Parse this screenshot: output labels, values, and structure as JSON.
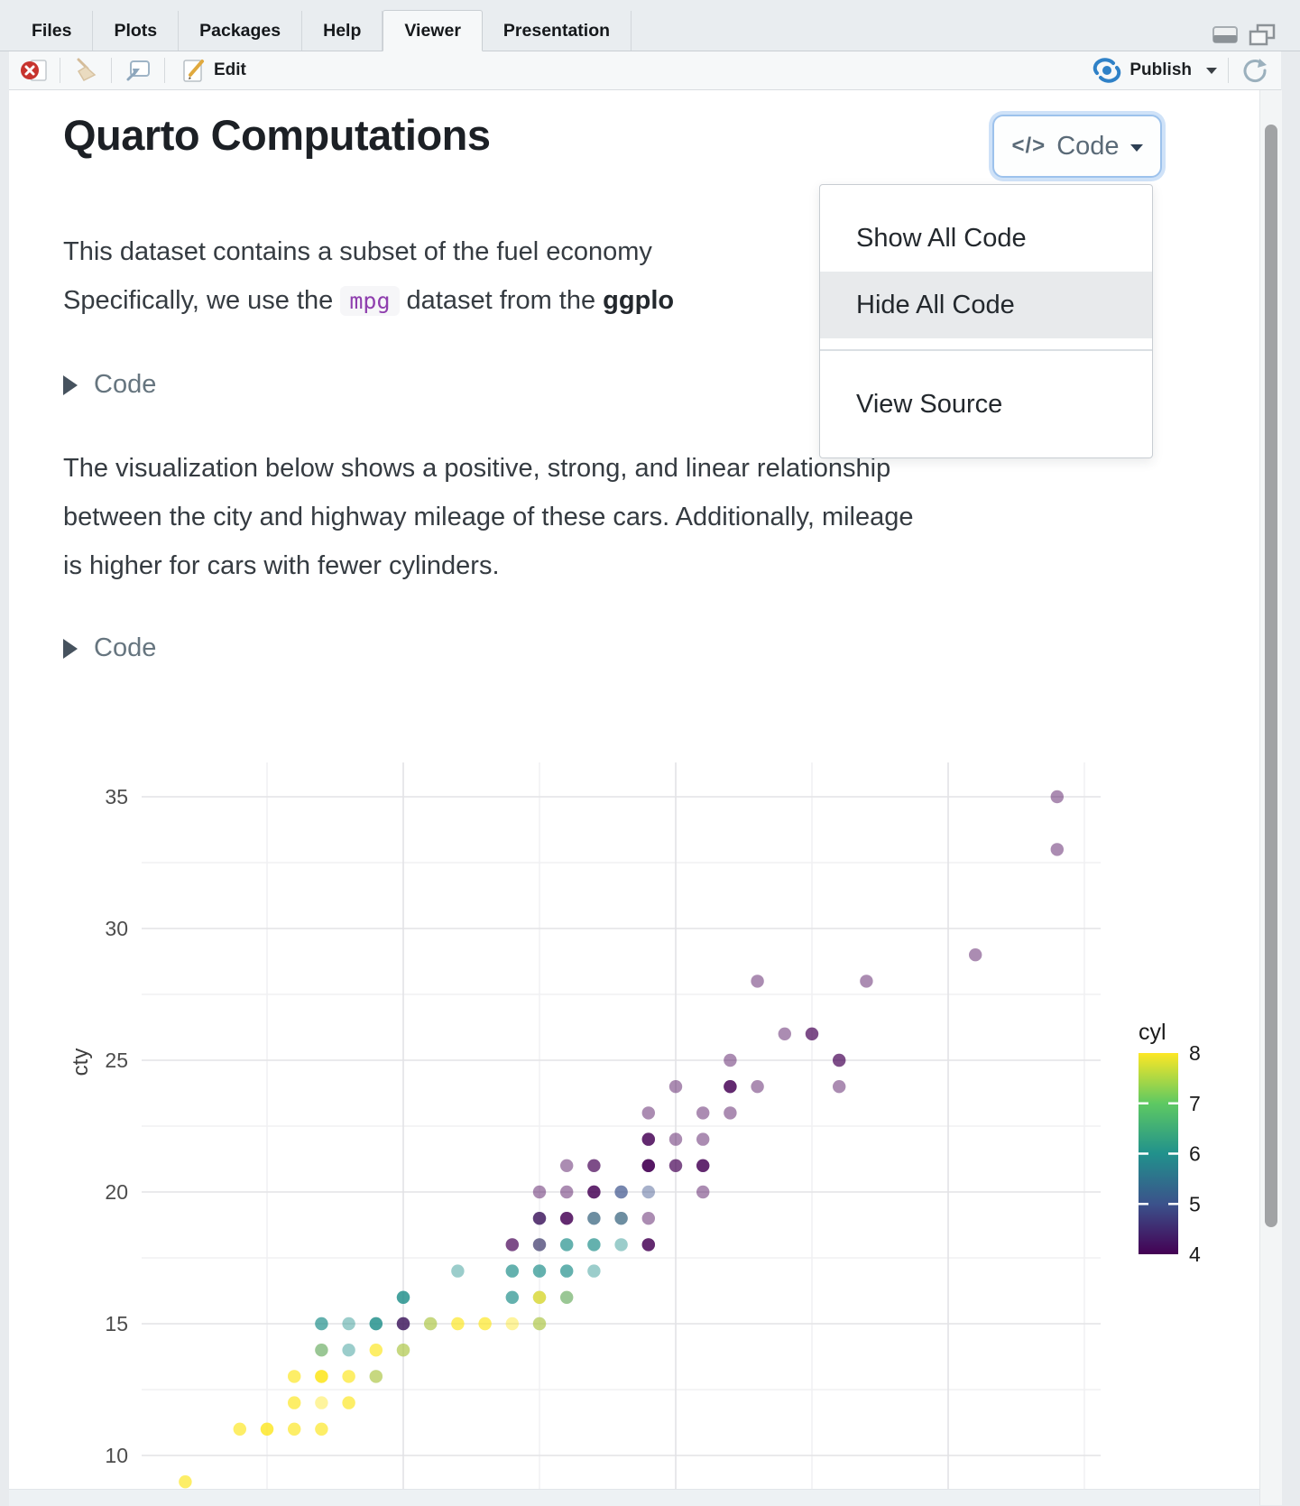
{
  "tabbar": {
    "tabs": [
      {
        "label": "Files",
        "active": false
      },
      {
        "label": "Plots",
        "active": false
      },
      {
        "label": "Packages",
        "active": false
      },
      {
        "label": "Help",
        "active": false
      },
      {
        "label": "Viewer",
        "active": true
      },
      {
        "label": "Presentation",
        "active": false
      }
    ]
  },
  "toolbar": {
    "edit_label": "Edit",
    "publish_label": "Publish"
  },
  "document": {
    "title": "Quarto Computations",
    "code_button": {
      "icon_glyph": "</>",
      "label": "Code"
    },
    "code_dropdown": {
      "items": [
        {
          "label": "Show All Code",
          "highlighted": false
        },
        {
          "label": "Hide All Code",
          "highlighted": true
        },
        {
          "label": "View Source",
          "highlighted": false
        }
      ]
    },
    "intro": {
      "line1": "This dataset contains a subset of the fuel economy",
      "line2_pre": "Specifically, we use the ",
      "line2_code": "mpg",
      "line2_mid": " dataset from the ",
      "line2_bold": "ggplo"
    },
    "fold1_label": "Code",
    "fold2_label": "Code",
    "body": {
      "line1": "The visualization below shows a positive, strong, and linear relationship",
      "line2": "between the city and highway mileage of these cars. Additionally, mileage",
      "line3": "is higher for cars with fewer cylinders."
    }
  },
  "colors": {
    "focus_ring": "#cfe2f8",
    "publish_blue": "#2f81c7",
    "stop_red": "#c7342e",
    "menu_highlight": "#e8eaec",
    "inline_code_purple": "#8f3fae"
  },
  "chart_data": {
    "type": "scatter",
    "title": "",
    "xlabel": "",
    "ylabel": "cty",
    "legend_title": "cyl",
    "x_axis_labels_visible": false,
    "x_range": [
      10.4,
      45.6
    ],
    "y_ticks": [
      10,
      15,
      20,
      25,
      30,
      35
    ],
    "y_minor": [
      12.5,
      17.5,
      22.5,
      27.5,
      32.5
    ],
    "x_gridlines_major": [
      20,
      30,
      40
    ],
    "x_gridlines_minor": [
      15,
      25,
      35,
      45
    ],
    "legend_ticks": [
      8,
      7,
      6,
      5,
      4
    ],
    "colormap": "viridis",
    "point_alpha": 0.45,
    "cyl_colors": {
      "4": "#440154",
      "5": "#3b528b",
      "6": "#21918c",
      "7": "#5ec962",
      "8": "#fde725"
    },
    "points": [
      {
        "hwy": 12,
        "cty": 9,
        "cyl": 8,
        "n": 2
      },
      {
        "hwy": 14,
        "cty": 11,
        "cyl": 8,
        "n": 2
      },
      {
        "hwy": 15,
        "cty": 11,
        "cyl": 8,
        "n": 3
      },
      {
        "hwy": 16,
        "cty": 11,
        "cyl": 8,
        "n": 2
      },
      {
        "hwy": 17,
        "cty": 11,
        "cyl": 8,
        "n": 2
      },
      {
        "hwy": 16,
        "cty": 12,
        "cyl": 8,
        "n": 2
      },
      {
        "hwy": 17,
        "cty": 12,
        "cyl": 8,
        "n": 1
      },
      {
        "hwy": 18,
        "cty": 12,
        "cyl": 8,
        "n": 2
      },
      {
        "hwy": 16,
        "cty": 13,
        "cyl": 8,
        "n": 2
      },
      {
        "hwy": 17,
        "cty": 13,
        "cyl": 8,
        "n": 4
      },
      {
        "hwy": 18,
        "cty": 13,
        "cyl": 8,
        "n": 2
      },
      {
        "hwy": 19,
        "cty": 13,
        "cyl": 6,
        "n": 1
      },
      {
        "hwy": 19,
        "cty": 13,
        "cyl": 8,
        "n": 1
      },
      {
        "hwy": 17,
        "cty": 14,
        "cyl": 8,
        "n": 1
      },
      {
        "hwy": 17,
        "cty": 14,
        "cyl": 6,
        "n": 1
      },
      {
        "hwy": 18,
        "cty": 14,
        "cyl": 6,
        "n": 1
      },
      {
        "hwy": 19,
        "cty": 14,
        "cyl": 8,
        "n": 2
      },
      {
        "hwy": 20,
        "cty": 14,
        "cyl": 6,
        "n": 1
      },
      {
        "hwy": 20,
        "cty": 14,
        "cyl": 8,
        "n": 1
      },
      {
        "hwy": 17,
        "cty": 15,
        "cyl": 6,
        "n": 2
      },
      {
        "hwy": 18,
        "cty": 15,
        "cyl": 6,
        "n": 1
      },
      {
        "hwy": 19,
        "cty": 15,
        "cyl": 6,
        "n": 3
      },
      {
        "hwy": 20,
        "cty": 15,
        "cyl": 6,
        "n": 1
      },
      {
        "hwy": 20,
        "cty": 15,
        "cyl": 4,
        "n": 2
      },
      {
        "hwy": 21,
        "cty": 15,
        "cyl": 6,
        "n": 1
      },
      {
        "hwy": 21,
        "cty": 15,
        "cyl": 8,
        "n": 1
      },
      {
        "hwy": 22,
        "cty": 15,
        "cyl": 8,
        "n": 2
      },
      {
        "hwy": 23,
        "cty": 15,
        "cyl": 8,
        "n": 2
      },
      {
        "hwy": 24,
        "cty": 15,
        "cyl": 8,
        "n": 1
      },
      {
        "hwy": 25,
        "cty": 15,
        "cyl": 6,
        "n": 1
      },
      {
        "hwy": 25,
        "cty": 15,
        "cyl": 8,
        "n": 1
      },
      {
        "hwy": 20,
        "cty": 16,
        "cyl": 6,
        "n": 3
      },
      {
        "hwy": 24,
        "cty": 16,
        "cyl": 6,
        "n": 2
      },
      {
        "hwy": 25,
        "cty": 16,
        "cyl": 6,
        "n": 1
      },
      {
        "hwy": 25,
        "cty": 16,
        "cyl": 8,
        "n": 2
      },
      {
        "hwy": 26,
        "cty": 16,
        "cyl": 8,
        "n": 1
      },
      {
        "hwy": 26,
        "cty": 16,
        "cyl": 6,
        "n": 1
      },
      {
        "hwy": 22,
        "cty": 17,
        "cyl": 6,
        "n": 1
      },
      {
        "hwy": 24,
        "cty": 17,
        "cyl": 6,
        "n": 2
      },
      {
        "hwy": 25,
        "cty": 17,
        "cyl": 6,
        "n": 2
      },
      {
        "hwy": 26,
        "cty": 17,
        "cyl": 6,
        "n": 2
      },
      {
        "hwy": 27,
        "cty": 17,
        "cyl": 6,
        "n": 1
      },
      {
        "hwy": 24,
        "cty": 18,
        "cyl": 4,
        "n": 2
      },
      {
        "hwy": 25,
        "cty": 18,
        "cyl": 6,
        "n": 1
      },
      {
        "hwy": 25,
        "cty": 18,
        "cyl": 4,
        "n": 1
      },
      {
        "hwy": 26,
        "cty": 18,
        "cyl": 6,
        "n": 2
      },
      {
        "hwy": 27,
        "cty": 18,
        "cyl": 6,
        "n": 2
      },
      {
        "hwy": 28,
        "cty": 18,
        "cyl": 6,
        "n": 1
      },
      {
        "hwy": 29,
        "cty": 18,
        "cyl": 4,
        "n": 3
      },
      {
        "hwy": 25,
        "cty": 19,
        "cyl": 6,
        "n": 1
      },
      {
        "hwy": 25,
        "cty": 19,
        "cyl": 4,
        "n": 2
      },
      {
        "hwy": 26,
        "cty": 19,
        "cyl": 4,
        "n": 3
      },
      {
        "hwy": 27,
        "cty": 19,
        "cyl": 4,
        "n": 1
      },
      {
        "hwy": 27,
        "cty": 19,
        "cyl": 6,
        "n": 1
      },
      {
        "hwy": 28,
        "cty": 19,
        "cyl": 4,
        "n": 1
      },
      {
        "hwy": 28,
        "cty": 19,
        "cyl": 6,
        "n": 1
      },
      {
        "hwy": 29,
        "cty": 19,
        "cyl": 4,
        "n": 1
      },
      {
        "hwy": 25,
        "cty": 20,
        "cyl": 4,
        "n": 1
      },
      {
        "hwy": 26,
        "cty": 20,
        "cyl": 4,
        "n": 1
      },
      {
        "hwy": 27,
        "cty": 20,
        "cyl": 4,
        "n": 3
      },
      {
        "hwy": 28,
        "cty": 20,
        "cyl": 5,
        "n": 2
      },
      {
        "hwy": 29,
        "cty": 20,
        "cyl": 5,
        "n": 1
      },
      {
        "hwy": 31,
        "cty": 20,
        "cyl": 4,
        "n": 1
      },
      {
        "hwy": 26,
        "cty": 21,
        "cyl": 4,
        "n": 1
      },
      {
        "hwy": 27,
        "cty": 21,
        "cyl": 4,
        "n": 2
      },
      {
        "hwy": 29,
        "cty": 21,
        "cyl": 4,
        "n": 4
      },
      {
        "hwy": 30,
        "cty": 21,
        "cyl": 4,
        "n": 2
      },
      {
        "hwy": 31,
        "cty": 21,
        "cyl": 4,
        "n": 3
      },
      {
        "hwy": 29,
        "cty": 22,
        "cyl": 4,
        "n": 3
      },
      {
        "hwy": 30,
        "cty": 22,
        "cyl": 4,
        "n": 1
      },
      {
        "hwy": 31,
        "cty": 22,
        "cyl": 4,
        "n": 1
      },
      {
        "hwy": 29,
        "cty": 23,
        "cyl": 4,
        "n": 1
      },
      {
        "hwy": 31,
        "cty": 23,
        "cyl": 4,
        "n": 1
      },
      {
        "hwy": 32,
        "cty": 23,
        "cyl": 4,
        "n": 1
      },
      {
        "hwy": 30,
        "cty": 24,
        "cyl": 4,
        "n": 1
      },
      {
        "hwy": 32,
        "cty": 24,
        "cyl": 4,
        "n": 3
      },
      {
        "hwy": 33,
        "cty": 24,
        "cyl": 4,
        "n": 1
      },
      {
        "hwy": 36,
        "cty": 24,
        "cyl": 4,
        "n": 1
      },
      {
        "hwy": 32,
        "cty": 25,
        "cyl": 4,
        "n": 1
      },
      {
        "hwy": 36,
        "cty": 25,
        "cyl": 4,
        "n": 2
      },
      {
        "hwy": 34,
        "cty": 26,
        "cyl": 4,
        "n": 1
      },
      {
        "hwy": 35,
        "cty": 26,
        "cyl": 4,
        "n": 2
      },
      {
        "hwy": 33,
        "cty": 28,
        "cyl": 4,
        "n": 1
      },
      {
        "hwy": 37,
        "cty": 28,
        "cyl": 4,
        "n": 1
      },
      {
        "hwy": 41,
        "cty": 29,
        "cyl": 4,
        "n": 1
      },
      {
        "hwy": 44,
        "cty": 33,
        "cyl": 4,
        "n": 1
      },
      {
        "hwy": 44,
        "cty": 35,
        "cyl": 4,
        "n": 1
      }
    ]
  }
}
